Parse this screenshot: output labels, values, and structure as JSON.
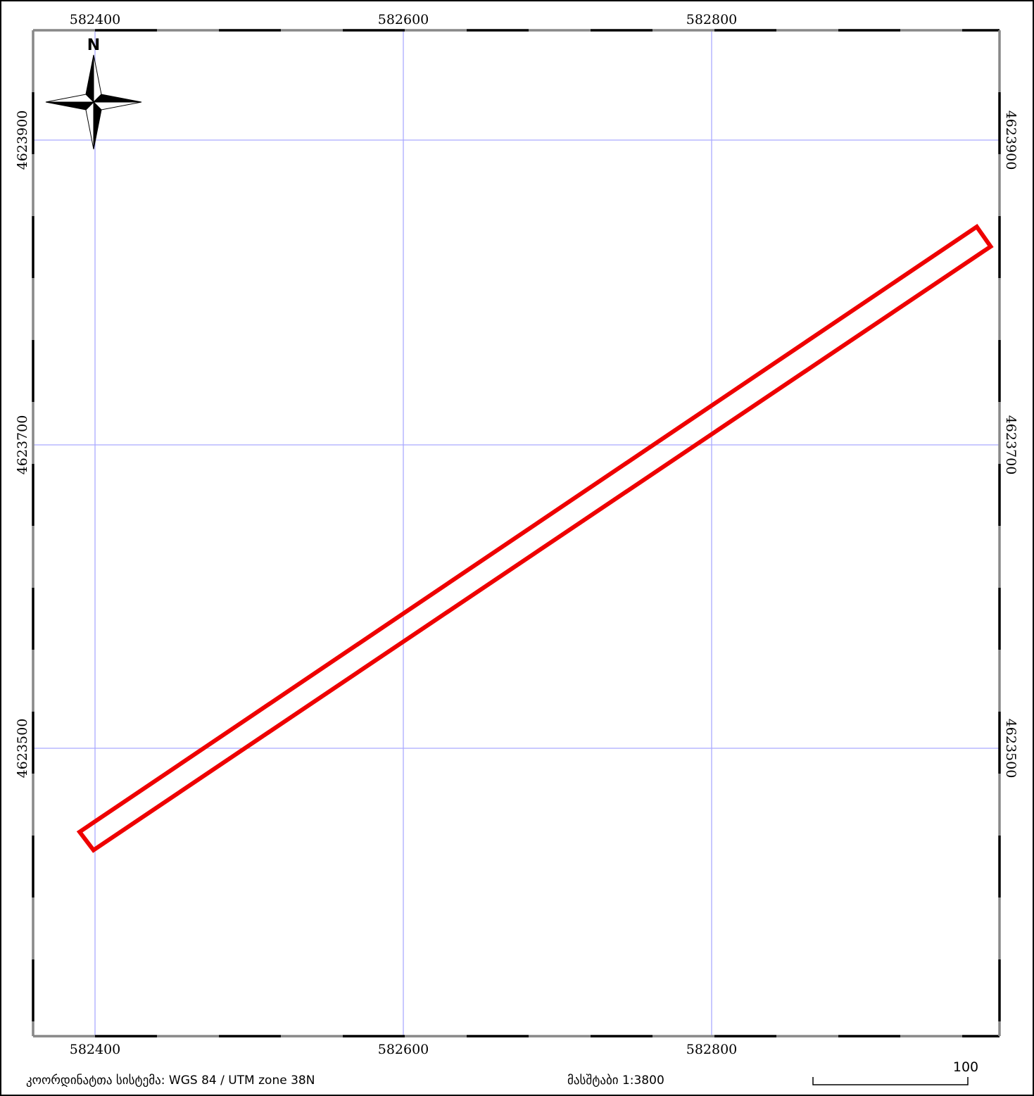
{
  "map": {
    "crs": "WGS 84 / UTM zone 38N",
    "scale": "1:3800",
    "colors": {
      "grid": "#aaaaff",
      "parcel_outline": "#ee0000",
      "frame": "#000000",
      "frame_alt": "#888888"
    },
    "x_ticks": [
      "582400",
      "582600",
      "582800"
    ],
    "y_ticks": [
      "4623900",
      "4623700",
      "4623500"
    ],
    "parcel": {
      "vertices_utm": [
        [
          582390,
          4623445
        ],
        [
          582972,
          4623843
        ],
        [
          582981,
          4623830
        ],
        [
          582399,
          4623433
        ]
      ]
    }
  },
  "north_arrow": {
    "label": "N",
    "icon": "compass-rose-icon"
  },
  "footer": {
    "crs_label": "კოორდინატთა სისტემა: WGS 84 / UTM zone 38N",
    "scale_label": "მასშტაბი 1:3800",
    "scale_bar_label": "100"
  }
}
